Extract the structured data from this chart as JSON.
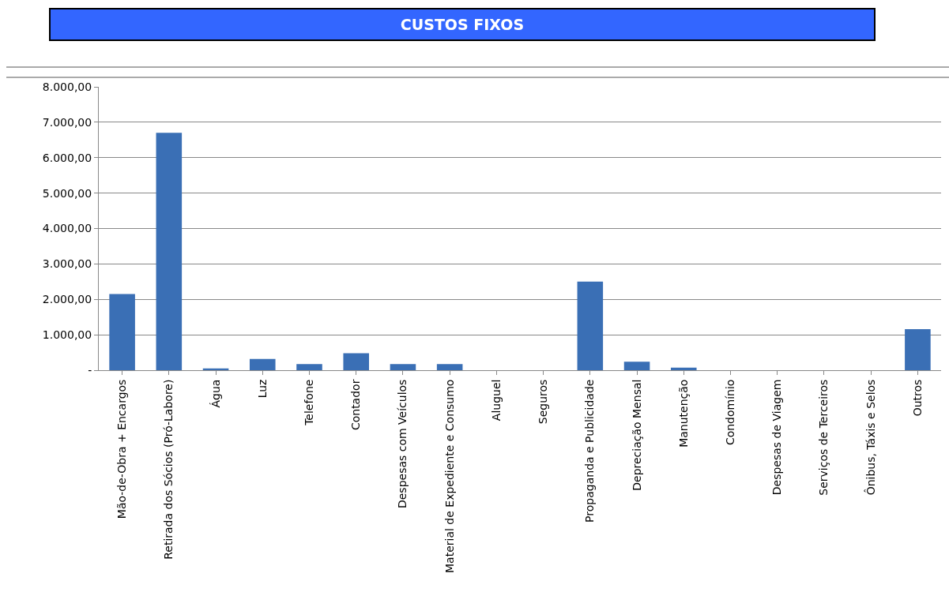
{
  "chart_data": {
    "type": "bar",
    "title": "CUSTOS FIXOS",
    "categories": [
      "Mão-de-Obra + Encargos",
      "Retirada dos Sócios (Pró-Labore)",
      "Água",
      "Luz",
      "Telefone",
      "Contador",
      "Despesas com Veículos",
      "Material de Expediente e Consumo",
      "Aluguel",
      "Seguros",
      "Propaganda e Publicidade",
      "Depreciação Mensal",
      "Manutenção",
      "Condomínio",
      "Despesas de Viagem",
      "Serviços de Terceiros",
      "Ônibus, Táxis e Selos",
      "Outros"
    ],
    "values": [
      2150,
      6700,
      50,
      320,
      170,
      480,
      170,
      170,
      0,
      0,
      2500,
      240,
      70,
      0,
      0,
      0,
      0,
      1160
    ],
    "color": "#3a6fb5",
    "ylim": [
      0,
      8000
    ],
    "yticks": [
      {
        "value": 0,
        "label": "-"
      },
      {
        "value": 1000,
        "label": "1.000,00"
      },
      {
        "value": 2000,
        "label": "2.000,00"
      },
      {
        "value": 3000,
        "label": "3.000,00"
      },
      {
        "value": 4000,
        "label": "4.000,00"
      },
      {
        "value": 5000,
        "label": "5.000,00"
      },
      {
        "value": 6000,
        "label": "6.000,00"
      },
      {
        "value": 7000,
        "label": "7.000,00"
      },
      {
        "value": 8000,
        "label": "8.000,00"
      }
    ],
    "grid": "y"
  }
}
